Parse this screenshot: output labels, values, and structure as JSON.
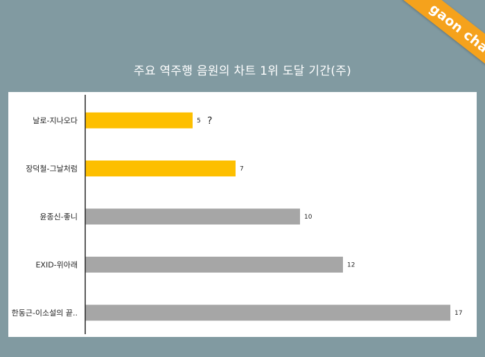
{
  "brand": {
    "badge": "gaon chart"
  },
  "colors": {
    "background": "#819aa1",
    "highlight": "#fdbf00",
    "other": "#a6a6a6",
    "brand": "#f5a21c"
  },
  "chart_data": {
    "type": "bar",
    "orientation": "horizontal",
    "title": "주요 역주행 음원의 차트 1위 도달 기간(주)",
    "categories": [
      "날로-지나오다",
      "장덕철-그날처럼",
      "윤종신-좋니",
      "EXID-위아래",
      "한동근-이소설의 끝.."
    ],
    "values": [
      5,
      7,
      10,
      12,
      17
    ],
    "highlighted": [
      true,
      true,
      false,
      false,
      false
    ],
    "annotations": [
      {
        "category": "날로-지나오다",
        "text": "?"
      }
    ],
    "xlim": [
      0,
      17
    ],
    "grid": false,
    "legend": "none"
  }
}
